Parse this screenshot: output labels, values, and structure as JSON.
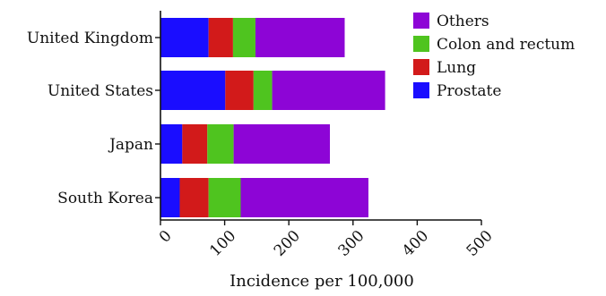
{
  "chart_data": {
    "type": "bar",
    "orientation": "horizontal",
    "stacked": true,
    "categories": [
      "United Kingdom",
      "United States",
      "Japan",
      "South Korea"
    ],
    "series": [
      {
        "name": "Prostate",
        "color": "#1a0dff",
        "values": [
          75,
          101,
          34,
          30
        ]
      },
      {
        "name": "Lung",
        "color": "#d21a1a",
        "values": [
          38,
          44,
          39,
          45
        ]
      },
      {
        "name": "Colon and rectum",
        "color": "#4fc41f",
        "values": [
          35,
          29,
          41,
          50
        ]
      },
      {
        "name": "Others",
        "color": "#8d05d6",
        "values": [
          139,
          176,
          150,
          199
        ]
      }
    ],
    "xlabel": "Incidence per 100,000",
    "xlim": [
      0,
      500
    ],
    "xticks": [
      "0",
      "100",
      "200",
      "300",
      "400",
      "500"
    ],
    "legend_position": "top-right",
    "legend_order": [
      "Others",
      "Colon and rectum",
      "Lung",
      "Prostate"
    ],
    "grid": false
  }
}
